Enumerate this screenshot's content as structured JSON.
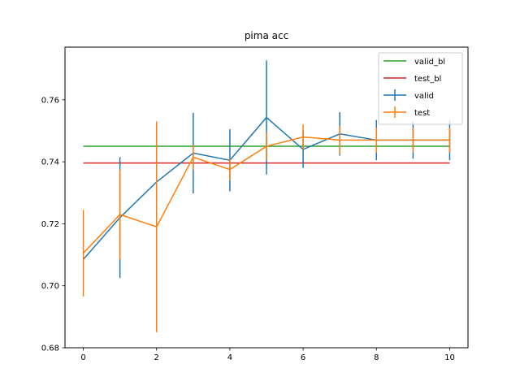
{
  "chart_data": {
    "type": "line",
    "title": "pima  acc",
    "xlabel": "",
    "ylabel": "",
    "xlim": [
      -0.5,
      10.5
    ],
    "ylim": [
      0.68,
      0.777
    ],
    "x_ticks": [
      0,
      2,
      4,
      6,
      8,
      10
    ],
    "x_tick_labels": [
      "0",
      "2",
      "4",
      "6",
      "8",
      "10"
    ],
    "y_ticks": [
      0.68,
      0.7,
      0.72,
      0.74,
      0.76
    ],
    "y_tick_labels": [
      "0.68",
      "0.70",
      "0.72",
      "0.74",
      "0.76"
    ],
    "grid": false,
    "legend_position": "top-right",
    "baselines": [
      {
        "name": "valid_bl",
        "color": "#2ca02c",
        "y": 0.745,
        "x_range": [
          0,
          10
        ]
      },
      {
        "name": "test_bl",
        "color": "#d62728",
        "y": 0.7396,
        "x_range": [
          0,
          10
        ]
      }
    ],
    "series": [
      {
        "name": "valid",
        "color": "#1f77b4",
        "x": [
          0,
          1,
          2,
          3,
          4,
          5,
          6,
          7,
          8,
          9,
          10
        ],
        "values": [
          0.7085,
          0.722,
          0.7335,
          0.7428,
          0.7405,
          0.7543,
          0.744,
          0.749,
          0.747,
          0.747,
          0.747
        ],
        "errors": [
          0.0,
          0.0195,
          0.0,
          0.013,
          0.01,
          0.0184,
          0.006,
          0.007,
          0.0065,
          0.006,
          0.0065
        ]
      },
      {
        "name": "test",
        "color": "#ff7f0e",
        "x": [
          0,
          1,
          2,
          3,
          4,
          5,
          6,
          7,
          8,
          9,
          10
        ],
        "values": [
          0.7105,
          0.723,
          0.719,
          0.7415,
          0.7375,
          0.745,
          0.748,
          0.747,
          0.747,
          0.747,
          0.747
        ],
        "errors": [
          0.014,
          0.0145,
          0.034,
          0.004,
          0.0035,
          0.0045,
          0.004,
          0.0045,
          0.004,
          0.004,
          0.004
        ]
      }
    ]
  }
}
